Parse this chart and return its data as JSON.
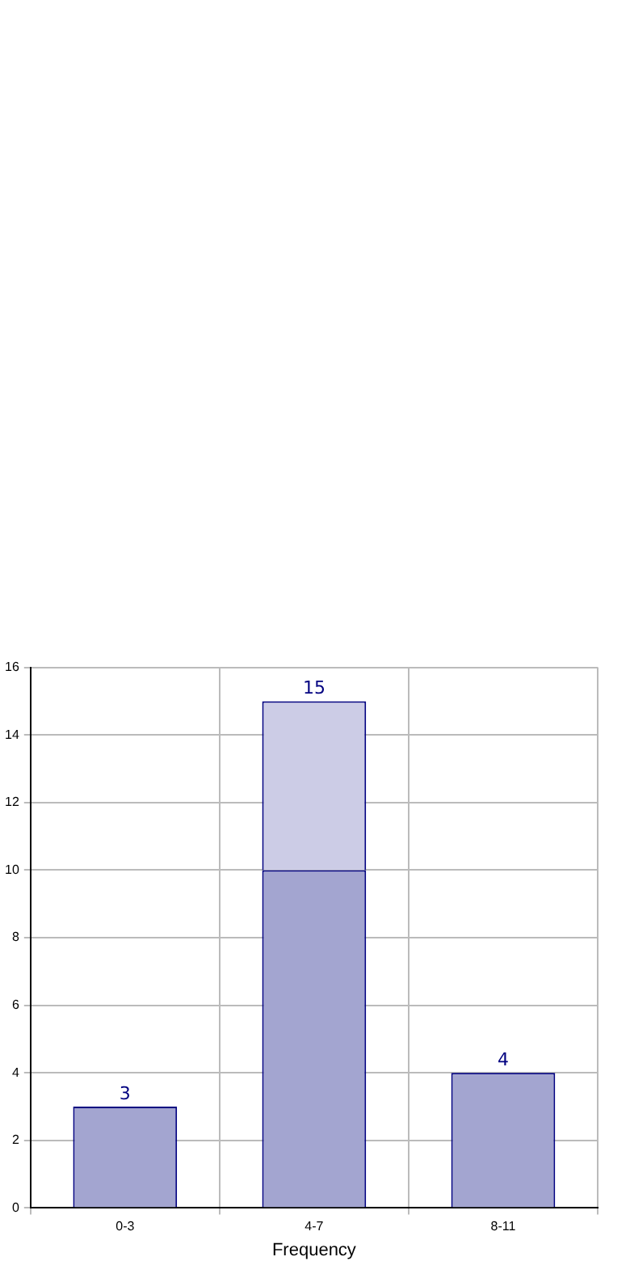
{
  "chart_data": {
    "type": "bar",
    "xlabel": "Frequency",
    "categories": [
      "0-3",
      "4-7",
      "8-11"
    ],
    "stacked": true,
    "series": [
      {
        "color": "#a3a5d0",
        "values": [
          3,
          10,
          4
        ]
      },
      {
        "color": "#cccce6",
        "values": [
          null,
          5,
          null
        ]
      }
    ],
    "totals": [
      "3",
      "15",
      "4"
    ],
    "ylim": [
      0,
      16
    ],
    "yticks": [
      0,
      2,
      4,
      6,
      8,
      10,
      12,
      14,
      16
    ],
    "grid": true,
    "legend": false
  }
}
